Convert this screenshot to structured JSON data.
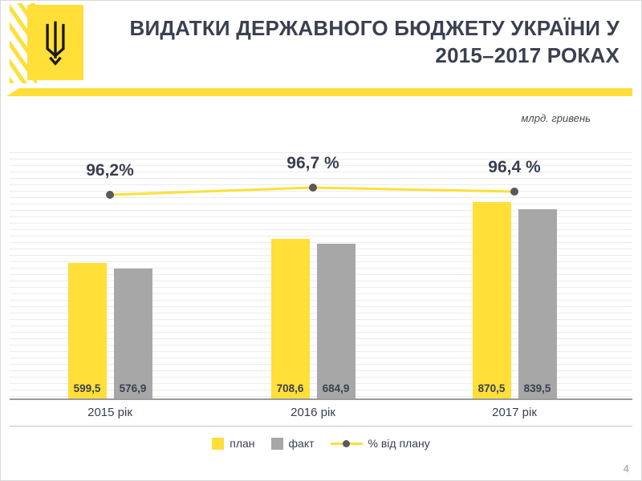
{
  "header": {
    "title_line1": "ВИДАТКИ ДЕРЖАВНОГО БЮДЖЕТУ УКРАЇНИ У",
    "title_line2": "2015–2017 РОКАХ"
  },
  "units_label": "млрд. гривень",
  "page_number": "4",
  "colors": {
    "accent": "#FFDF38",
    "bar_gray": "#A7A7A7",
    "title": "#3A4050",
    "marker": "#595959"
  },
  "chart_data": {
    "type": "bar",
    "title": "Видатки державного бюджету України у 2015–2017 роках",
    "units": "млрд. гривень",
    "categories": [
      "2015 рік",
      "2016 рік",
      "2017 рік"
    ],
    "series": [
      {
        "name": "план",
        "color": "#FFDF38",
        "values": [
          599.5,
          708.6,
          870.5
        ],
        "labels": [
          "599,5",
          "708,6",
          "870,5"
        ]
      },
      {
        "name": "факт",
        "color": "#A7A7A7",
        "values": [
          576.9,
          684.9,
          839.5
        ],
        "labels": [
          "576,9",
          "684,9",
          "839,5"
        ]
      }
    ],
    "line_series": {
      "name": "% від плану",
      "color": "#FFDF38",
      "marker_color": "#595959",
      "values": [
        96.2,
        96.7,
        96.4
      ],
      "labels": [
        "96,2%",
        "96,7 %",
        "96,4 %"
      ]
    },
    "ylim": [
      0,
      1090
    ],
    "grid": true,
    "legend_position": "bottom"
  }
}
